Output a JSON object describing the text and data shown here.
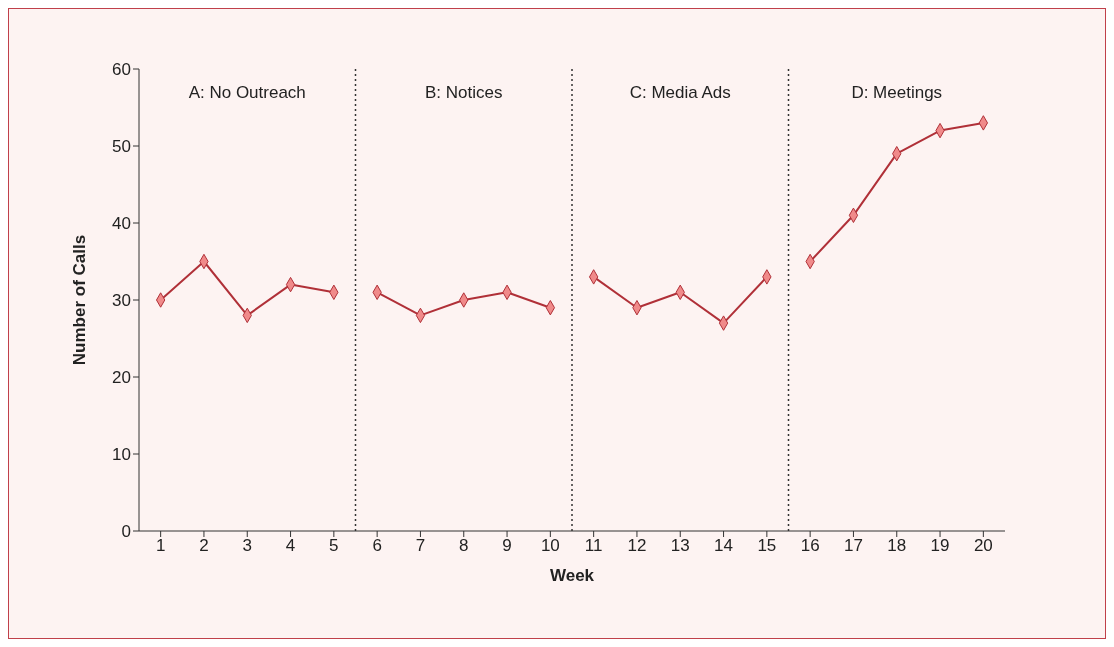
{
  "chart_data": {
    "type": "line",
    "xlabel": "Week",
    "ylabel": "Number of Calls",
    "xlim": [
      0.5,
      20.5
    ],
    "xticks": [
      1,
      2,
      3,
      4,
      5,
      6,
      7,
      8,
      9,
      10,
      11,
      12,
      13,
      14,
      15,
      16,
      17,
      18,
      19,
      20
    ],
    "ylim": [
      0,
      60
    ],
    "yticks": [
      0,
      10,
      20,
      30,
      40,
      50,
      60
    ],
    "series": [
      {
        "color": "#b03038",
        "x": [
          1,
          2,
          3,
          4,
          5
        ],
        "values": [
          30,
          35,
          28,
          32,
          31
        ]
      },
      {
        "color": "#b03038",
        "x": [
          6,
          7,
          8,
          9,
          10
        ],
        "values": [
          31,
          28,
          30,
          31,
          29
        ]
      },
      {
        "color": "#b03038",
        "x": [
          11,
          12,
          13,
          14,
          15
        ],
        "values": [
          33,
          29,
          31,
          27,
          33
        ]
      },
      {
        "color": "#b03038",
        "x": [
          16,
          17,
          18,
          19,
          20
        ],
        "values": [
          35,
          41,
          49,
          52,
          53
        ]
      }
    ],
    "marker": "diamond",
    "line_style": "solid",
    "grid": false,
    "legend": false,
    "ref_lines": [
      {
        "axis": "x",
        "value": 5.5,
        "line_style": "dotted",
        "color": "#333333"
      },
      {
        "axis": "x",
        "value": 10.5,
        "line_style": "dotted",
        "color": "#333333"
      },
      {
        "axis": "x",
        "value": 15.5,
        "line_style": "dotted",
        "color": "#333333"
      }
    ],
    "annotations": [
      "A: No Outreach",
      "B: Notices",
      "C: Media Ads",
      "D: Meetings"
    ]
  }
}
